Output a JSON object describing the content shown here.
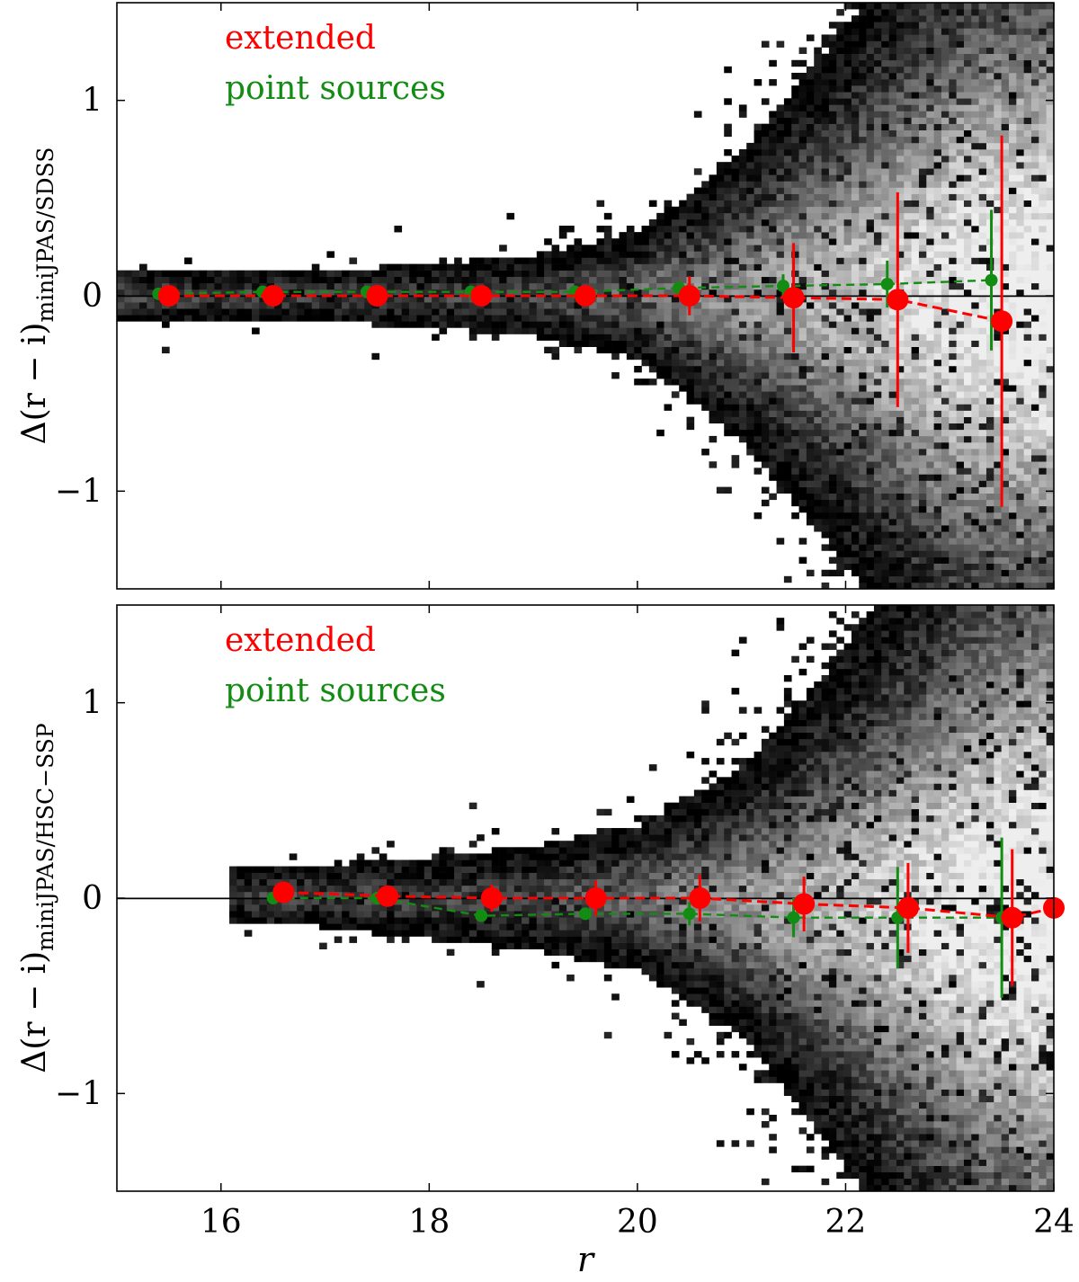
{
  "colors": {
    "extended": "#ff0000",
    "point": "#138c13",
    "axis": "#000000",
    "zero_line": "#000000"
  },
  "chart_data": [
    {
      "type": "scatter",
      "title": "",
      "xlabel": "r",
      "ylabel": {
        "prefix": "Δ(r − i)",
        "subscript": "miniJPAS/SDSS"
      },
      "xlim": [
        15,
        24
      ],
      "ylim": [
        -1.5,
        1.5
      ],
      "xticks": [
        16,
        18,
        20,
        22,
        24
      ],
      "xtick_labels": [
        "16",
        "18",
        "20",
        "22",
        "24"
      ],
      "yticks": [
        -1,
        0,
        1
      ],
      "ytick_labels": [
        "−1",
        "0",
        "1"
      ],
      "show_xtick_labels": false,
      "legend": {
        "position": "top-left",
        "entries": [
          {
            "name": "extended",
            "color": "#ff0000"
          },
          {
            "name": "point sources",
            "color": "#138c13"
          }
        ]
      },
      "background_density": {
        "type": "heatmap",
        "colormap": "greys",
        "center": [
          [
            15,
            0.0
          ],
          [
            17,
            0.0
          ],
          [
            19,
            0.0
          ],
          [
            20,
            0.0
          ],
          [
            21,
            0.0
          ],
          [
            22,
            0.0
          ],
          [
            23,
            0.0
          ],
          [
            24,
            0.0
          ]
        ],
        "spread": [
          [
            15,
            0.05
          ],
          [
            17,
            0.05
          ],
          [
            18,
            0.06
          ],
          [
            19,
            0.08
          ],
          [
            20,
            0.12
          ],
          [
            21,
            0.28
          ],
          [
            22,
            0.52
          ],
          [
            23,
            0.82
          ],
          [
            24,
            0.95
          ]
        ],
        "x_start": 15
      },
      "series": [
        {
          "name": "extended",
          "x": [
            15.5,
            16.5,
            17.5,
            18.5,
            19.5,
            20.5,
            21.5,
            22.5,
            23.5
          ],
          "y": [
            0.0,
            0.0,
            0.0,
            0.0,
            0.0,
            0.0,
            -0.01,
            -0.02,
            -0.13
          ],
          "yerr": [
            0.01,
            0.01,
            0.01,
            0.02,
            0.04,
            0.1,
            0.28,
            0.55,
            0.95
          ]
        },
        {
          "name": "point sources",
          "x": [
            15.4,
            16.4,
            17.4,
            18.4,
            19.4,
            20.4,
            21.4,
            22.4,
            23.4
          ],
          "y": [
            0.01,
            0.02,
            0.02,
            0.02,
            0.02,
            0.04,
            0.05,
            0.06,
            0.08
          ],
          "yerr": [
            0.01,
            0.01,
            0.01,
            0.01,
            0.02,
            0.03,
            0.06,
            0.12,
            0.36
          ]
        }
      ]
    },
    {
      "type": "scatter",
      "title": "",
      "xlabel": "r",
      "ylabel": {
        "prefix": "Δ(r − i)",
        "subscript": "miniJPAS/HSC−SSP"
      },
      "xlim": [
        15,
        24
      ],
      "ylim": [
        -1.5,
        1.5
      ],
      "xticks": [
        16,
        18,
        20,
        22,
        24
      ],
      "xtick_labels": [
        "16",
        "18",
        "20",
        "22",
        "24"
      ],
      "yticks": [
        -1,
        0,
        1
      ],
      "ytick_labels": [
        "−1",
        "0",
        "1"
      ],
      "show_xtick_labels": true,
      "legend": {
        "position": "top-left",
        "entries": [
          {
            "name": "extended",
            "color": "#ff0000"
          },
          {
            "name": "point sources",
            "color": "#138c13"
          }
        ]
      },
      "background_density": {
        "type": "heatmap",
        "colormap": "greys",
        "center": [
          [
            16,
            0.02
          ],
          [
            18,
            0.0
          ],
          [
            20,
            0.0
          ],
          [
            21,
            -0.02
          ],
          [
            22,
            -0.05
          ],
          [
            23,
            -0.08
          ],
          [
            24,
            -0.06
          ]
        ],
        "spread": [
          [
            16,
            0.05
          ],
          [
            17,
            0.06
          ],
          [
            18,
            0.08
          ],
          [
            19,
            0.1
          ],
          [
            20,
            0.14
          ],
          [
            21,
            0.26
          ],
          [
            22,
            0.5
          ],
          [
            23,
            0.8
          ],
          [
            24,
            1.05
          ]
        ],
        "x_start": 16.1
      },
      "series": [
        {
          "name": "extended",
          "x": [
            16.6,
            17.6,
            18.6,
            19.6,
            20.6,
            21.6,
            22.6,
            23.6,
            24.0
          ],
          "y": [
            0.03,
            0.01,
            0.0,
            0.0,
            0.0,
            -0.03,
            -0.05,
            -0.1,
            -0.05
          ],
          "yerr": [
            0.03,
            0.04,
            0.07,
            0.09,
            0.12,
            0.14,
            0.23,
            0.35,
            0.0
          ]
        },
        {
          "name": "point sources",
          "x": [
            16.5,
            17.5,
            18.5,
            19.5,
            20.5,
            21.5,
            22.5,
            23.5
          ],
          "y": [
            0.0,
            0.0,
            -0.09,
            -0.08,
            -0.08,
            -0.1,
            -0.1,
            -0.1
          ],
          "yerr": [
            0.01,
            0.02,
            0.03,
            0.03,
            0.06,
            0.1,
            0.26,
            0.41
          ]
        }
      ]
    }
  ]
}
